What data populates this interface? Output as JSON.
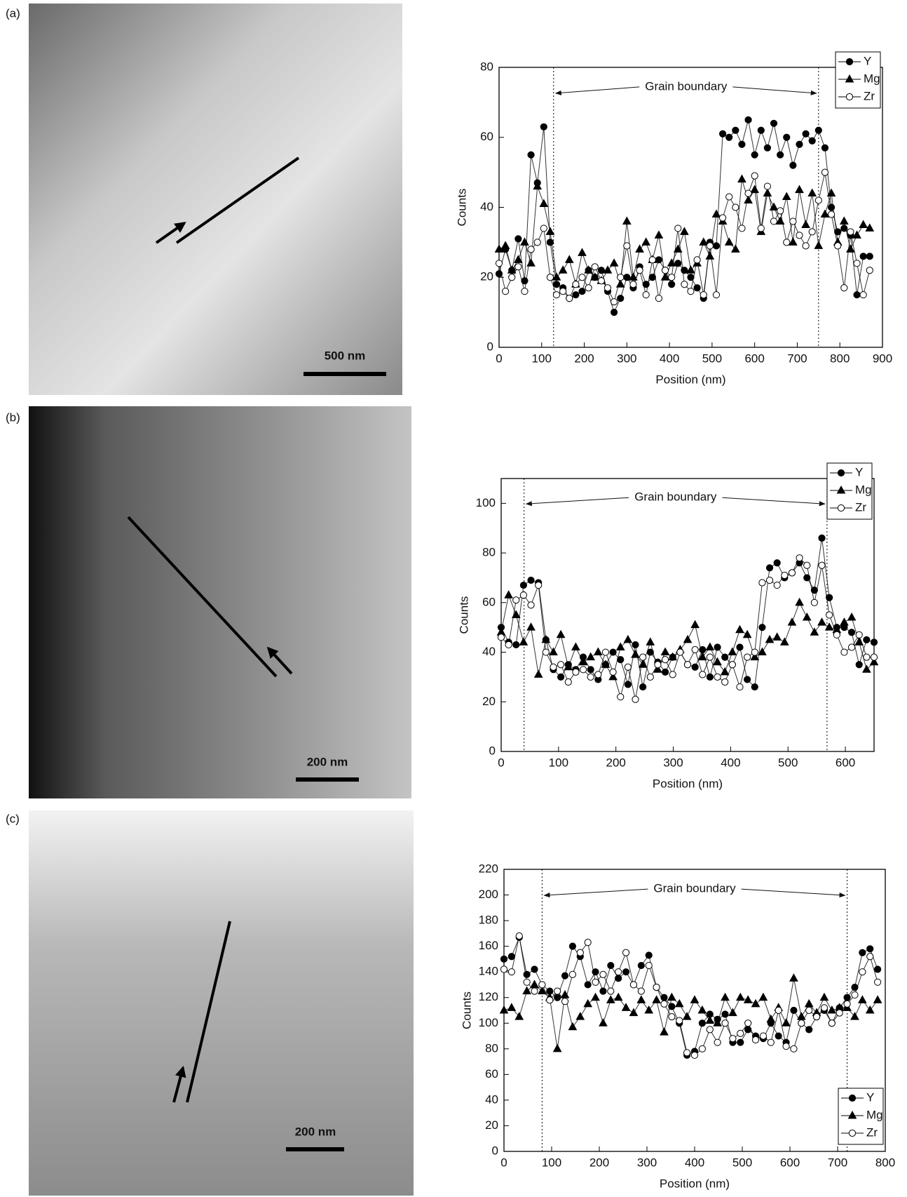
{
  "chart_data": [
    {
      "type": "line",
      "panel_label": "(a)",
      "scale_bar_label": "500 nm",
      "annotation": "Grain boundary",
      "grain_boundaries": [
        128,
        750
      ],
      "x_label": "Position (nm)",
      "y_label": "Counts",
      "xlim": [
        0,
        900
      ],
      "ylim": [
        0,
        80
      ],
      "xticks": [
        0,
        100,
        200,
        300,
        400,
        500,
        600,
        700,
        800,
        900
      ],
      "yticks": [
        0,
        20,
        40,
        60,
        80
      ],
      "legend": "top-right",
      "x": [
        0,
        15,
        30,
        45,
        60,
        75,
        90,
        105,
        120,
        135,
        150,
        165,
        180,
        195,
        210,
        225,
        240,
        255,
        270,
        285,
        300,
        315,
        330,
        345,
        360,
        375,
        390,
        405,
        420,
        435,
        450,
        465,
        480,
        495,
        510,
        525,
        540,
        555,
        570,
        585,
        600,
        615,
        630,
        645,
        660,
        675,
        690,
        705,
        720,
        735,
        750,
        765,
        780,
        795,
        810,
        825,
        840,
        855,
        870
      ],
      "series": [
        {
          "name": "Y",
          "color": "#000000",
          "marker": "circle-filled",
          "values": [
            21,
            28,
            22,
            31,
            19,
            55,
            47,
            63,
            30,
            18,
            17,
            14,
            15,
            16,
            22,
            20,
            22,
            16,
            10,
            14,
            20,
            17,
            23,
            18,
            20,
            25,
            22,
            18,
            24,
            22,
            20,
            17,
            14,
            30,
            29,
            61,
            60,
            62,
            58,
            65,
            55,
            62,
            57,
            64,
            55,
            60,
            52,
            58,
            61,
            59,
            62,
            57,
            40,
            33,
            34,
            32,
            15,
            26,
            26
          ]
        },
        {
          "name": "Mg",
          "color": "#000000",
          "marker": "triangle-filled",
          "values": [
            28,
            29,
            22,
            25,
            30,
            24,
            46,
            41,
            33,
            20,
            22,
            25,
            18,
            27,
            22,
            20,
            19,
            22,
            24,
            18,
            36,
            20,
            28,
            30,
            25,
            32,
            20,
            24,
            28,
            33,
            22,
            24,
            30,
            26,
            38,
            36,
            30,
            28,
            48,
            42,
            45,
            33,
            44,
            40,
            36,
            43,
            30,
            45,
            35,
            44,
            29,
            38,
            44,
            30,
            36,
            28,
            32,
            35,
            34
          ]
        },
        {
          "name": "Zr",
          "color": "#000000",
          "marker": "circle-open",
          "values": [
            24,
            16,
            20,
            23,
            16,
            28,
            30,
            34,
            20,
            15,
            16,
            14,
            18,
            20,
            17,
            23,
            19,
            17,
            13,
            20,
            29,
            18,
            22,
            15,
            25,
            14,
            22,
            20,
            34,
            18,
            16,
            25,
            15,
            29,
            15,
            37,
            43,
            40,
            34,
            44,
            49,
            34,
            46,
            36,
            39,
            30,
            36,
            32,
            29,
            33,
            42,
            50,
            38,
            29,
            17,
            33,
            24,
            15,
            22
          ]
        }
      ]
    },
    {
      "type": "line",
      "panel_label": "(b)",
      "scale_bar_label": "200 nm",
      "annotation": "Grain boundary",
      "grain_boundaries": [
        40,
        568
      ],
      "x_label": "Position (nm)",
      "y_label": "Counts",
      "xlim": [
        0,
        650
      ],
      "ylim": [
        0,
        110
      ],
      "xticks": [
        0,
        100,
        200,
        300,
        400,
        500,
        600
      ],
      "yticks": [
        0,
        20,
        40,
        60,
        80,
        100
      ],
      "legend": "top-right",
      "x": [
        0,
        13,
        26,
        39,
        52,
        65,
        78,
        91,
        104,
        117,
        130,
        143,
        156,
        169,
        182,
        195,
        208,
        221,
        234,
        247,
        260,
        273,
        286,
        299,
        312,
        325,
        338,
        351,
        364,
        377,
        390,
        403,
        416,
        429,
        442,
        455,
        468,
        481,
        494,
        507,
        520,
        533,
        546,
        559,
        572,
        585,
        598,
        611,
        624,
        637,
        650
      ],
      "series": [
        {
          "name": "Y",
          "color": "#000000",
          "marker": "circle-filled",
          "values": [
            50,
            44,
            43,
            67,
            69,
            68,
            45,
            33,
            30,
            35,
            33,
            38,
            33,
            29,
            35,
            40,
            37,
            27,
            43,
            26,
            40,
            36,
            32,
            38,
            40,
            35,
            34,
            41,
            30,
            42,
            38,
            35,
            42,
            29,
            26,
            50,
            74,
            76,
            70,
            72,
            76,
            70,
            65,
            86,
            62,
            50,
            50,
            48,
            35,
            45,
            44
          ]
        },
        {
          "name": "Mg",
          "color": "#000000",
          "marker": "triangle-filled",
          "values": [
            48,
            63,
            55,
            44,
            50,
            31,
            45,
            40,
            47,
            34,
            42,
            36,
            38,
            40,
            35,
            30,
            42,
            45,
            39,
            35,
            44,
            33,
            40,
            38,
            41,
            45,
            51,
            38,
            42,
            36,
            32,
            40,
            49,
            47,
            38,
            40,
            45,
            46,
            44,
            52,
            60,
            54,
            48,
            52,
            50,
            49,
            52,
            54,
            44,
            33,
            36
          ]
        },
        {
          "name": "Zr",
          "color": "#000000",
          "marker": "circle-open",
          "values": [
            46,
            43,
            61,
            63,
            59,
            67,
            40,
            34,
            35,
            28,
            32,
            33,
            30,
            31,
            40,
            32,
            22,
            34,
            21,
            38,
            30,
            35,
            37,
            31,
            40,
            35,
            41,
            31,
            38,
            30,
            28,
            35,
            26,
            38,
            40,
            68,
            69,
            67,
            71,
            72,
            78,
            75,
            60,
            75,
            55,
            47,
            40,
            42,
            47,
            38,
            38
          ]
        }
      ]
    },
    {
      "type": "line",
      "panel_label": "(c)",
      "scale_bar_label": "200 nm",
      "annotation": "Grain boundary",
      "grain_boundaries": [
        80,
        720
      ],
      "x_label": "Position (nm)",
      "y_label": "Counts",
      "xlim": [
        0,
        800
      ],
      "ylim": [
        0,
        220
      ],
      "xticks": [
        0,
        100,
        200,
        300,
        400,
        500,
        600,
        700,
        800
      ],
      "yticks": [
        0,
        20,
        40,
        60,
        80,
        100,
        120,
        140,
        160,
        180,
        200,
        220
      ],
      "legend": "bottom-right",
      "x": [
        0,
        16,
        32,
        48,
        64,
        80,
        96,
        112,
        128,
        144,
        160,
        176,
        192,
        208,
        224,
        240,
        256,
        272,
        288,
        304,
        320,
        336,
        352,
        368,
        384,
        400,
        416,
        432,
        448,
        464,
        480,
        496,
        512,
        528,
        544,
        560,
        576,
        592,
        608,
        624,
        640,
        656,
        672,
        688,
        704,
        720,
        736,
        752,
        768,
        784
      ],
      "series": [
        {
          "name": "Y",
          "color": "#000000",
          "marker": "circle-filled",
          "values": [
            150,
            152,
            167,
            138,
            142,
            130,
            125,
            120,
            137,
            160,
            152,
            130,
            140,
            125,
            145,
            135,
            140,
            130,
            145,
            153,
            128,
            120,
            113,
            100,
            75,
            78,
            100,
            107,
            103,
            107,
            85,
            85,
            95,
            90,
            88,
            100,
            90,
            85,
            110,
            100,
            95,
            105,
            110,
            100,
            112,
            120,
            128,
            155,
            158,
            142
          ]
        },
        {
          "name": "Mg",
          "color": "#000000",
          "marker": "triangle-filled",
          "values": [
            110,
            112,
            105,
            125,
            130,
            125,
            120,
            80,
            122,
            97,
            105,
            115,
            120,
            100,
            118,
            120,
            112,
            108,
            118,
            110,
            118,
            93,
            120,
            115,
            105,
            118,
            110,
            102,
            100,
            120,
            108,
            120,
            118,
            115,
            120,
            103,
            112,
            100,
            135,
            105,
            115,
            108,
            120,
            110,
            112,
            112,
            105,
            118,
            110,
            118
          ]
        },
        {
          "name": "Zr",
          "color": "#000000",
          "marker": "circle-open",
          "values": [
            142,
            140,
            168,
            132,
            125,
            130,
            118,
            125,
            117,
            138,
            155,
            163,
            132,
            138,
            125,
            140,
            155,
            130,
            125,
            145,
            128,
            115,
            105,
            102,
            77,
            75,
            80,
            95,
            85,
            100,
            88,
            92,
            100,
            87,
            90,
            85,
            110,
            82,
            80,
            100,
            110,
            105,
            112,
            100,
            108,
            115,
            122,
            140,
            152,
            132
          ]
        }
      ]
    }
  ]
}
